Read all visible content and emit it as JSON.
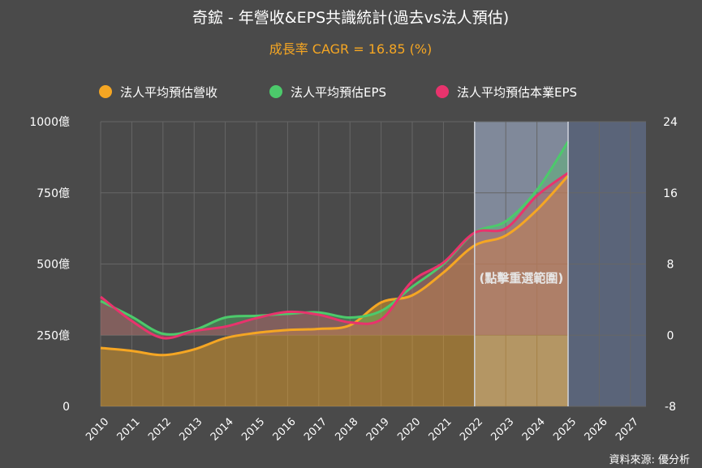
{
  "title": "奇鋐 - 年營收&EPS共識統計(過去vs法人預估)",
  "subtitle": "成長率 CAGR = 16.85 (%)",
  "source": "資料來源: 優分析",
  "overlay_label": "(點擊重選範圍)",
  "colors": {
    "background": "#4a4a4a",
    "revenue": "#f5a623",
    "eps": "#4cca6b",
    "core_eps": "#e8336d",
    "forecast_band": "#8a94a8",
    "future_band": "#5a6479",
    "grid": "#666666"
  },
  "legend": [
    {
      "label": "法人平均預估營收",
      "color": "#f5a623"
    },
    {
      "label": "法人平均預估EPS",
      "color": "#4cca6b"
    },
    {
      "label": "法人平均預估本業EPS",
      "color": "#e8336d"
    }
  ],
  "chart_data": {
    "type": "line",
    "x": [
      "2010",
      "2011",
      "2012",
      "2013",
      "2014",
      "2015",
      "2016",
      "2017",
      "2018",
      "2019",
      "2020",
      "2021",
      "2022",
      "2023",
      "2024",
      "2025",
      "2026",
      "2027"
    ],
    "y_left": {
      "ticks": [
        "0",
        "250億",
        "500億",
        "750億",
        "1000億"
      ],
      "values": [
        0,
        250,
        500,
        750,
        1000
      ],
      "range": [
        0,
        1000
      ]
    },
    "y_right": {
      "ticks": [
        "-8",
        "0",
        "8",
        "16",
        "24"
      ],
      "values": [
        -8,
        0,
        8,
        16,
        24
      ],
      "range": [
        -8,
        24
      ]
    },
    "forecast_region": [
      "2022",
      "2025"
    ],
    "future_region": [
      "2025",
      "2027"
    ],
    "series": [
      {
        "name": "法人平均預估營收",
        "axis": "left",
        "points": [
          [
            2010,
            205
          ],
          [
            2011,
            195
          ],
          [
            2012,
            180
          ],
          [
            2013,
            200
          ],
          [
            2014,
            240
          ],
          [
            2015,
            258
          ],
          [
            2016,
            268
          ],
          [
            2017,
            272
          ],
          [
            2018,
            285
          ],
          [
            2019,
            365
          ],
          [
            2020,
            390
          ],
          [
            2021,
            470
          ],
          [
            2022,
            565
          ],
          [
            2023,
            600
          ],
          [
            2024,
            690
          ],
          [
            2025,
            810
          ]
        ]
      },
      {
        "name": "法人平均預估EPS",
        "axis": "left",
        "points": [
          [
            2010,
            370
          ],
          [
            2011,
            315
          ],
          [
            2012,
            255
          ],
          [
            2013,
            268
          ],
          [
            2014,
            312
          ],
          [
            2015,
            318
          ],
          [
            2016,
            325
          ],
          [
            2017,
            330
          ],
          [
            2018,
            312
          ],
          [
            2019,
            335
          ],
          [
            2020,
            420
          ],
          [
            2021,
            500
          ],
          [
            2022,
            610
          ],
          [
            2023,
            650
          ],
          [
            2024,
            760
          ],
          [
            2025,
            930
          ]
        ]
      },
      {
        "name": "法人平均預估本業EPS",
        "axis": "left",
        "points": [
          [
            2010,
            385
          ],
          [
            2011,
            300
          ],
          [
            2012,
            240
          ],
          [
            2013,
            265
          ],
          [
            2014,
            280
          ],
          [
            2015,
            310
          ],
          [
            2016,
            332
          ],
          [
            2017,
            322
          ],
          [
            2018,
            295
          ],
          [
            2019,
            305
          ],
          [
            2020,
            440
          ],
          [
            2021,
            505
          ],
          [
            2022,
            610
          ],
          [
            2023,
            625
          ],
          [
            2024,
            740
          ],
          [
            2025,
            820
          ]
        ]
      }
    ]
  }
}
